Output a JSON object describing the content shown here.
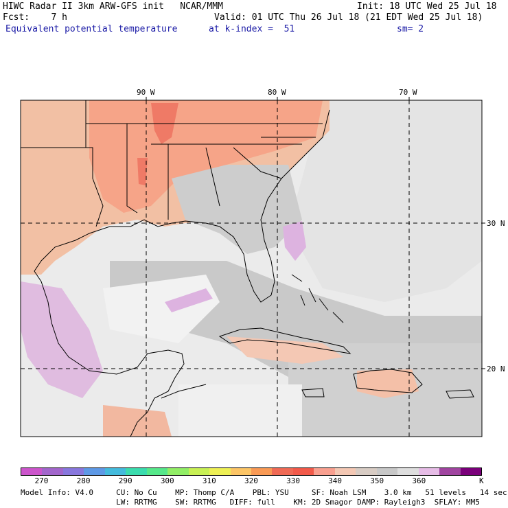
{
  "header": {
    "line1_left": "HIWC Radar II 3km ARW-GFS init   NCAR/MMM",
    "line1_right": "Init: 18 UTC Wed 25 Jul 18",
    "line2_left": "Fcst:    7 h",
    "line2_right": "Valid: 01 UTC Thu 26 Jul 18 (21 EDT Wed 25 Jul 18)",
    "field_name": "Equivalent potential temperature",
    "k_index": "at k-index =  51",
    "smoothing": "sm= 2"
  },
  "map": {
    "lon_labels": [
      "90 W",
      "80 W",
      "70 W"
    ],
    "lat_labels": [
      "30 N",
      "20 N"
    ]
  },
  "colorbar": {
    "colors": [
      "#cc55cc",
      "#a266cc",
      "#8877dd",
      "#5e99e6",
      "#44bbdd",
      "#3bdcae",
      "#56e88a",
      "#92ee66",
      "#c8f055",
      "#eef055",
      "#fcc566",
      "#f99a55",
      "#f06a55",
      "#f25a4a",
      "#f9a090",
      "#f4c8b4",
      "#d8ccc4",
      "#c8c8c8",
      "#dedede",
      "#e6bce6",
      "#a045a0",
      "#7a007a"
    ],
    "labels": [
      "270",
      "280",
      "290",
      "300",
      "310",
      "320",
      "330",
      "340",
      "350",
      "360"
    ],
    "unit": "K"
  },
  "footer": {
    "line1": "Model Info: V4.0     CU: No Cu    MP: Thomp C/A    PBL: YSU     SF: Noah LSM    3.0 km   51 levels   14 sec",
    "line2": "                     LW: RRTMG    SW: RRTMG   DIFF: full    KM: 2D Smagor DAMP: Rayleigh3  SFLAY: MM5"
  }
}
